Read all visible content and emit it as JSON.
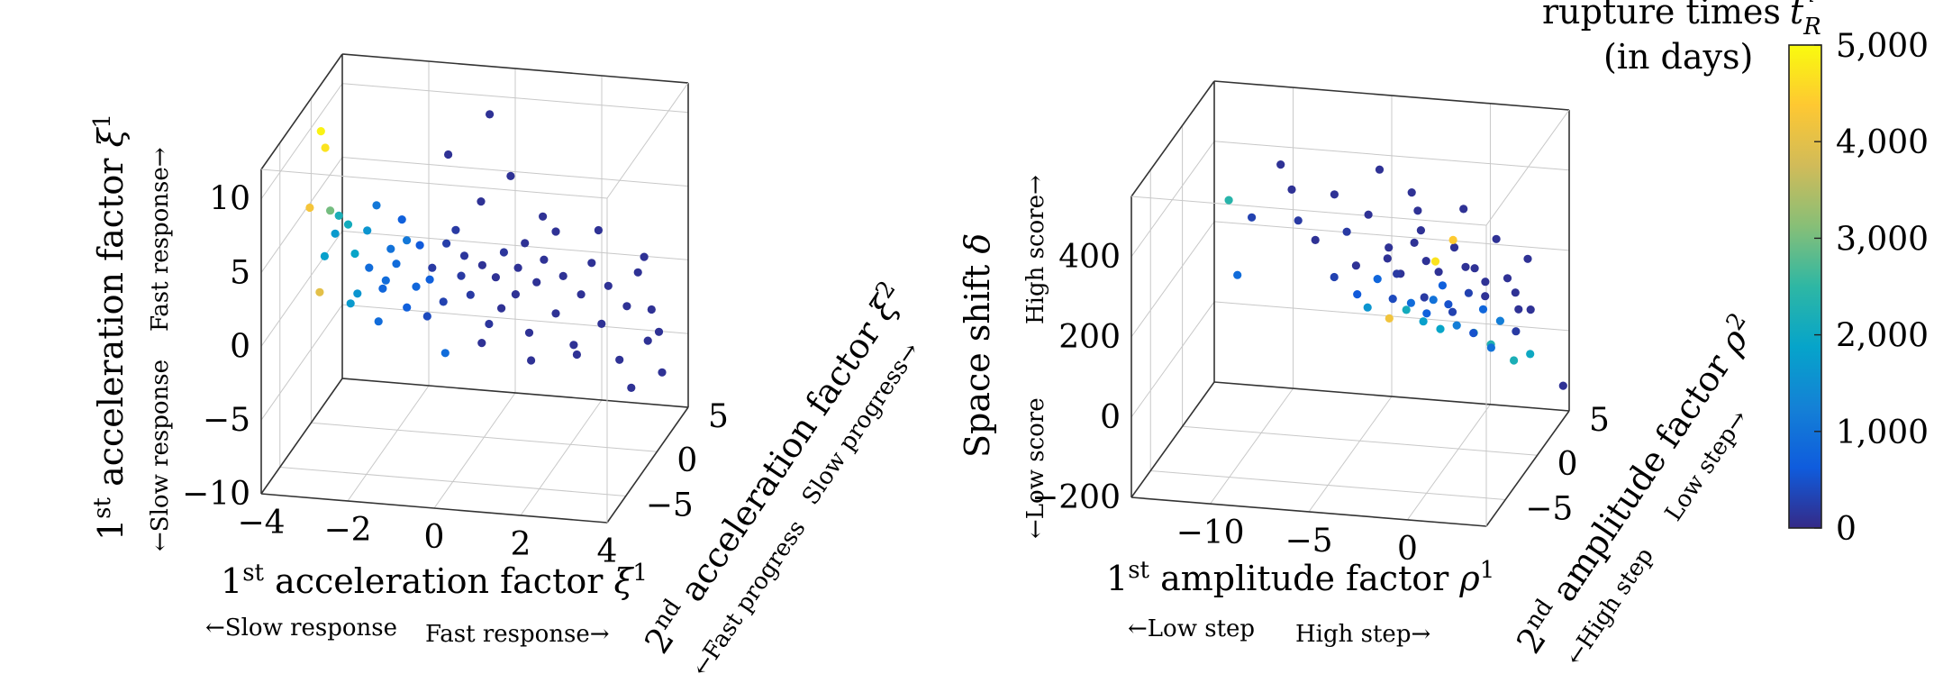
{
  "colormap": {
    "stops": [
      "#352a87",
      "#0f5cdd",
      "#1481d6",
      "#06a4ca",
      "#2eb7a4",
      "#87bf77",
      "#d1bb59",
      "#fec832",
      "#f9fb0e"
    ],
    "title_line1": "rupture times",
    "title_symbol": "t",
    "title_sub": "R",
    "title_sup": "i",
    "title_line2": "(in days)",
    "ticks": [
      "5,000",
      "4,000",
      "3,000",
      "2,000",
      "1,000",
      "0"
    ],
    "min": 0,
    "max": 5000
  },
  "chart_data": [
    {
      "type": "scatter",
      "name_key": "left",
      "xlabel": {
        "prefix": "1",
        "sup": "st",
        "text": " acceleration factor ",
        "symbol": "ξ",
        "symsup": "1"
      },
      "ylabel": {
        "prefix": "2",
        "sup": "nd",
        "text": " acceleration factor ",
        "symbol": "ξ",
        "symsup": "2"
      },
      "zlabel": {
        "prefix": "1",
        "sup": "st",
        "text": " acceleration factor ",
        "symbol": "ξ",
        "symsup": "1"
      },
      "x_hint_low": "←Slow response",
      "x_hint_high": "Fast response→",
      "y_hint_low": "←Fast progress",
      "y_hint_high": "Slow progress→",
      "z_hint_low": "←Slow response",
      "z_hint_high": "Fast response→",
      "xlim": [
        -4,
        4
      ],
      "ylim": [
        -8,
        5
      ],
      "zlim": [
        -10,
        12
      ],
      "xticks": [
        -4,
        -2,
        0,
        2,
        4
      ],
      "yticks": [
        -5,
        0,
        5
      ],
      "zticks": [
        -10,
        -5,
        0,
        5,
        10
      ],
      "xtick_labels": [
        "−4",
        "−2",
        "0",
        "2",
        "4"
      ],
      "ytick_labels": [
        "−5",
        "0",
        "5"
      ],
      "ztick_labels": [
        "−10",
        "−5",
        "0",
        "5",
        "10"
      ],
      "grid": true,
      "points": [
        [
          -3.6,
          -1.2,
          10.6,
          4900
        ],
        [
          -3.5,
          -1.2,
          9.5,
          4700
        ],
        [
          -3.8,
          -1.6,
          5.6,
          4250
        ],
        [
          -3.4,
          -1.1,
          5.2,
          3000
        ],
        [
          -3.2,
          -1.1,
          4.9,
          2200
        ],
        [
          -3.0,
          -1.0,
          4.3,
          2100
        ],
        [
          -3.3,
          -1.0,
          3.6,
          1700
        ],
        [
          -3.5,
          -1.3,
          2.2,
          1800
        ],
        [
          -3.6,
          -1.4,
          -0.2,
          4000
        ],
        [
          -2.8,
          -0.9,
          -0.4,
          1600
        ],
        [
          -2.9,
          -0.6,
          2.1,
          1900
        ],
        [
          -3.0,
          -0.6,
          -1.3,
          1700
        ],
        [
          -2.6,
          -0.7,
          3.8,
          1600
        ],
        [
          -2.4,
          -0.6,
          5.5,
          1100
        ],
        [
          -2.6,
          -0.4,
          1.1,
          900
        ],
        [
          -2.3,
          -0.3,
          -0.3,
          800
        ],
        [
          -2.1,
          -0.4,
          2.5,
          1000
        ],
        [
          -2.0,
          -0.2,
          1.4,
          900
        ],
        [
          -2.2,
          -0.5,
          0.4,
          900
        ],
        [
          -1.8,
          0.1,
          -1.7,
          700
        ],
        [
          -1.6,
          0.2,
          -0.3,
          800
        ],
        [
          -1.9,
          0.0,
          4.3,
          700
        ],
        [
          -1.5,
          0.1,
          2.6,
          600
        ],
        [
          -1.2,
          0.0,
          1.2,
          200
        ],
        [
          -1.3,
          0.3,
          0.2,
          700
        ],
        [
          -1.0,
          0.4,
          -1.3,
          300
        ],
        [
          -0.9,
          0.2,
          2.8,
          250
        ],
        [
          -0.6,
          0.5,
          0.5,
          200
        ],
        [
          -0.5,
          0.3,
          2.0,
          150
        ],
        [
          -0.4,
          0.6,
          -0.8,
          200
        ],
        [
          -0.1,
          0.4,
          1.4,
          100
        ],
        [
          0.0,
          0.8,
          -2.8,
          150
        ],
        [
          0.2,
          0.5,
          0.6,
          100
        ],
        [
          0.3,
          0.7,
          -1.6,
          100
        ],
        [
          0.4,
          0.4,
          2.4,
          150
        ],
        [
          0.6,
          0.9,
          -0.7,
          100
        ],
        [
          0.7,
          0.6,
          1.3,
          100
        ],
        [
          0.9,
          1.0,
          -3.3,
          100
        ],
        [
          1.1,
          0.8,
          0.3,
          100
        ],
        [
          1.3,
          0.6,
          2.0,
          100
        ],
        [
          1.5,
          1.1,
          -1.9,
          100
        ],
        [
          1.7,
          0.9,
          0.8,
          100
        ],
        [
          1.9,
          1.2,
          -4.0,
          100
        ],
        [
          2.1,
          1.0,
          -0.4,
          100
        ],
        [
          2.3,
          1.3,
          1.6,
          100
        ],
        [
          2.5,
          1.5,
          -2.6,
          100
        ],
        [
          2.7,
          1.2,
          0.2,
          100
        ],
        [
          2.9,
          1.6,
          -5.0,
          100
        ],
        [
          3.1,
          1.4,
          -1.2,
          100
        ],
        [
          3.3,
          1.8,
          0.9,
          100
        ],
        [
          3.5,
          2.0,
          -3.8,
          100
        ],
        [
          3.8,
          2.2,
          -6.0,
          100
        ],
        [
          3.6,
          1.9,
          -1.6,
          100
        ],
        [
          0.1,
          0.2,
          11.8,
          100
        ],
        [
          -0.8,
          -0.2,
          9.1,
          100
        ],
        [
          0.6,
          0.1,
          7.8,
          100
        ],
        [
          -0.2,
          0.9,
          5.4,
          100
        ],
        [
          1.2,
          1.1,
          4.6,
          100
        ],
        [
          2.4,
          1.7,
          3.6,
          100
        ],
        [
          3.4,
          2.1,
          1.8,
          100
        ],
        [
          -1.1,
          1.4,
          -5.4,
          900
        ],
        [
          -0.3,
          1.7,
          -4.7,
          100
        ],
        [
          0.8,
          2.0,
          -5.8,
          100
        ],
        [
          1.8,
          2.4,
          -5.4,
          100
        ],
        [
          3.0,
          2.8,
          -7.6,
          100
        ],
        [
          3.9,
          1.0,
          -2.5,
          100
        ],
        [
          -0.7,
          0.3,
          3.7,
          200
        ],
        [
          0.9,
          0.3,
          3.2,
          100
        ],
        [
          1.6,
          0.4,
          4.1,
          100
        ],
        [
          -1.4,
          0.6,
          -2.5,
          400
        ],
        [
          -2.5,
          0.4,
          -3.0,
          900
        ],
        [
          -1.7,
          -0.6,
          3.3,
          1100
        ]
      ]
    },
    {
      "type": "scatter",
      "name_key": "right",
      "xlabel": {
        "prefix": "1",
        "sup": "st",
        "text": " amplitude factor ",
        "symbol": "ρ",
        "symsup": "1"
      },
      "ylabel": {
        "prefix": "2",
        "sup": "nd",
        "text": " amplitude factor ",
        "symbol": "ρ",
        "symsup": "2"
      },
      "zlabel": {
        "prefix": "",
        "sup": "",
        "text": "Space shift ",
        "symbol": "δ",
        "symsup": ""
      },
      "x_hint_low": "←Low step",
      "x_hint_high": "High step→",
      "y_hint_low": "←High step",
      "y_hint_high": "Low step→",
      "z_hint_low": "←Low score",
      "z_hint_high": "High score→",
      "xlim": [
        -14,
        4
      ],
      "ylim": [
        -8,
        5
      ],
      "zlim": [
        -200,
        550
      ],
      "xticks": [
        -10,
        -5,
        0
      ],
      "yticks": [
        -5,
        0,
        5
      ],
      "zticks": [
        -200,
        0,
        200,
        400
      ],
      "xtick_labels": [
        "−10",
        "−5",
        "0"
      ],
      "ytick_labels": [
        "−5",
        "0",
        "5"
      ],
      "ztick_labels": [
        "−200",
        "0",
        "200",
        "400"
      ],
      "grid": true,
      "points": [
        [
          -11.0,
          -2.0,
          420,
          2400
        ],
        [
          -10.0,
          -1.5,
          370,
          300
        ],
        [
          -10.5,
          -2.2,
          240,
          900
        ],
        [
          -8.5,
          -1.6,
          510,
          100
        ],
        [
          -8.0,
          -1.4,
          445,
          100
        ],
        [
          -7.8,
          -1.0,
          360,
          200
        ],
        [
          -7.0,
          -0.8,
          310,
          100
        ],
        [
          -6.0,
          -0.9,
          430,
          100
        ],
        [
          -5.5,
          -0.5,
          330,
          200
        ],
        [
          -5.0,
          -0.6,
          250,
          100
        ],
        [
          -4.5,
          -0.2,
          370,
          100
        ],
        [
          -4.0,
          0.0,
          480,
          100
        ],
        [
          -3.5,
          -0.1,
          290,
          100
        ],
        [
          -3.0,
          0.2,
          220,
          100
        ],
        [
          -2.5,
          0.4,
          420,
          100
        ],
        [
          -2.0,
          0.3,
          330,
          100
        ],
        [
          -1.8,
          0.5,
          250,
          100
        ],
        [
          -1.5,
          0.7,
          150,
          1000
        ],
        [
          -1.0,
          0.6,
          190,
          700
        ],
        [
          -0.5,
          0.9,
          280,
          100
        ],
        [
          0.0,
          0.8,
          380,
          100
        ],
        [
          0.5,
          1.0,
          230,
          100
        ],
        [
          1.0,
          1.1,
          160,
          100
        ],
        [
          1.5,
          1.3,
          300,
          100
        ],
        [
          2.0,
          1.5,
          200,
          100
        ],
        [
          2.5,
          1.7,
          120,
          100
        ],
        [
          3.0,
          1.6,
          250,
          100
        ],
        [
          -2.0,
          -0.2,
          390,
          100
        ],
        [
          -3.2,
          -0.4,
          170,
          400
        ],
        [
          -4.2,
          0.3,
          200,
          800
        ],
        [
          -4.8,
          0.6,
          120,
          1600
        ],
        [
          -3.8,
          0.9,
          90,
          4200
        ],
        [
          -3.0,
          1.1,
          110,
          2100
        ],
        [
          -2.2,
          1.3,
          80,
          1800
        ],
        [
          -1.4,
          1.5,
          60,
          1900
        ],
        [
          -0.6,
          1.6,
          70,
          1200
        ],
        [
          0.2,
          1.8,
          50,
          2600
        ],
        [
          1.0,
          2.0,
          20,
          2300
        ],
        [
          -0.4,
          0.4,
          310,
          4400
        ],
        [
          -1.2,
          0.1,
          260,
          4700
        ],
        [
          -2.6,
          0.6,
          140,
          900
        ],
        [
          -1.9,
          0.9,
          110,
          700
        ],
        [
          -0.9,
          1.2,
          130,
          500
        ],
        [
          0.1,
          1.3,
          160,
          300
        ],
        [
          0.8,
          1.4,
          120,
          800
        ],
        [
          1.6,
          1.6,
          90,
          1200
        ],
        [
          2.3,
          1.9,
          60,
          200
        ],
        [
          -5.2,
          0.2,
          160,
          600
        ],
        [
          -6.2,
          -0.3,
          210,
          300
        ],
        [
          -2.9,
          -0.7,
          240,
          200
        ],
        [
          -1.6,
          -0.4,
          180,
          200
        ],
        [
          -0.3,
          0.0,
          140,
          300
        ],
        [
          0.6,
          0.5,
          80,
          500
        ],
        [
          1.4,
          0.8,
          40,
          1000
        ],
        [
          2.1,
          2.2,
          -20,
          2200
        ],
        [
          2.8,
          2.6,
          -10,
          2000
        ],
        [
          3.5,
          0.5,
          150,
          100
        ],
        [
          4.5,
          2.5,
          -80,
          100
        ],
        [
          -3.6,
          0.0,
          260,
          100
        ],
        [
          -2.3,
          0.2,
          300,
          100
        ],
        [
          -1.1,
          0.3,
          230,
          100
        ],
        [
          0.3,
          0.2,
          250,
          100
        ],
        [
          1.2,
          0.5,
          210,
          100
        ],
        [
          2.6,
          0.9,
          180,
          100
        ]
      ]
    }
  ]
}
